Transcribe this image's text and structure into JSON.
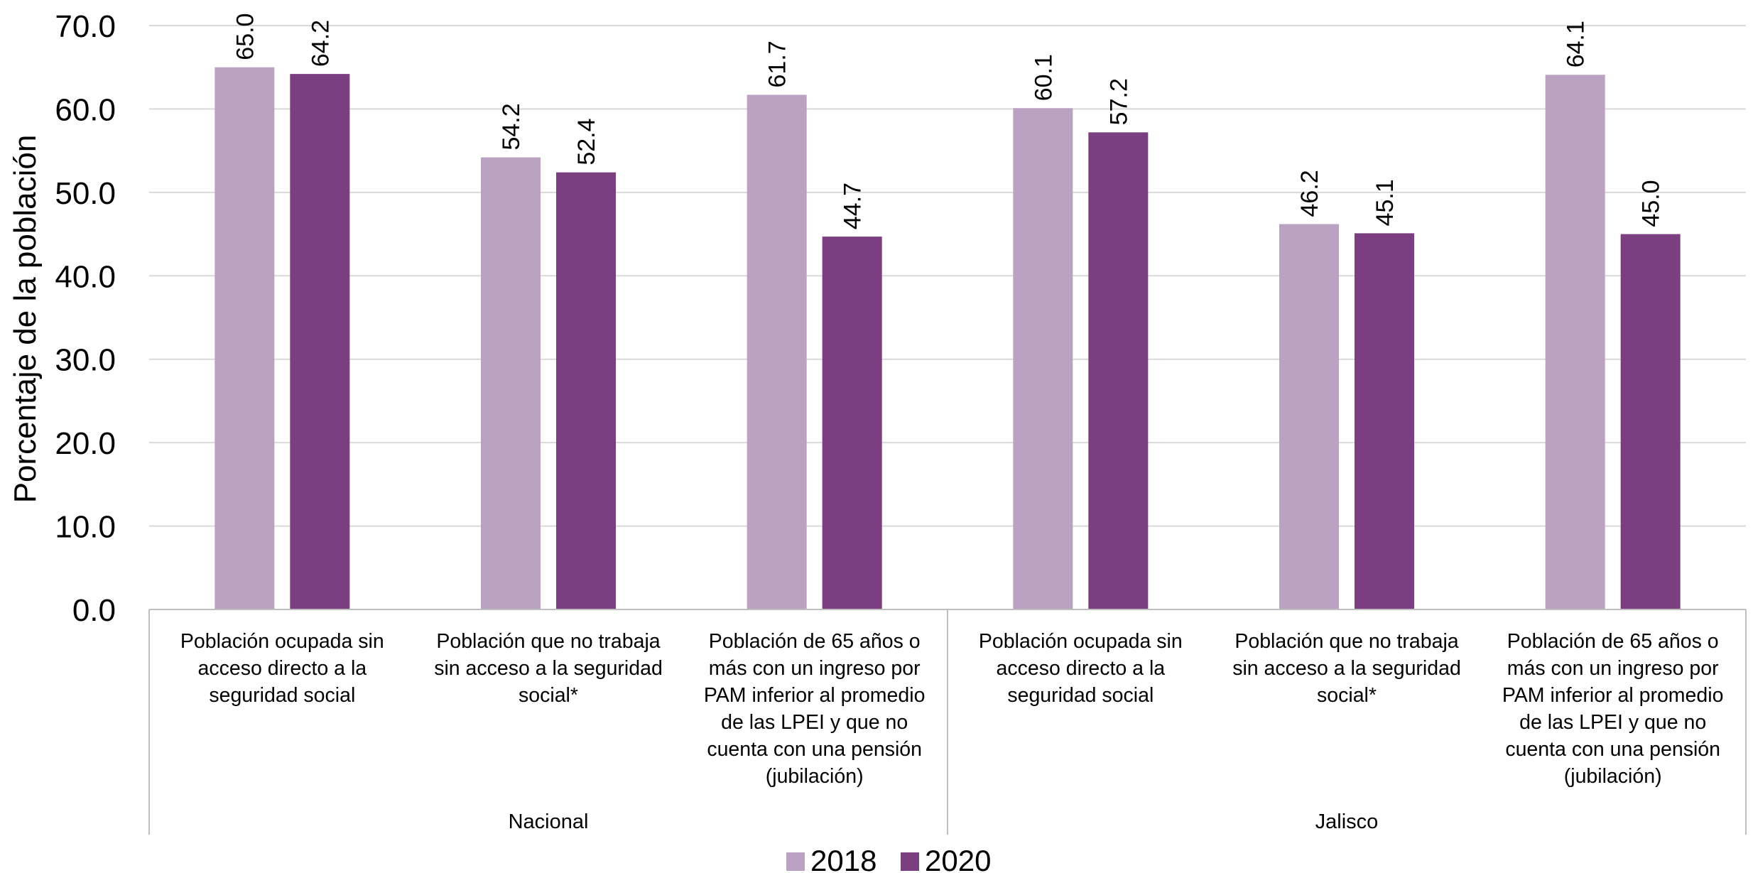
{
  "chart_data": {
    "type": "bar",
    "ylabel": "Porcentaje de la población",
    "ylim": [
      0,
      70
    ],
    "y_ticks": [
      "0.0",
      "10.0",
      "20.0",
      "30.0",
      "40.0",
      "50.0",
      "60.0",
      "70.0"
    ],
    "grid": true,
    "legend_position": "bottom",
    "groups": [
      {
        "name": "Nacional",
        "categories": [
          [
            "Población ocupada sin",
            "acceso directo a la",
            "seguridad social"
          ],
          [
            "Población que no trabaja",
            "sin acceso a la seguridad",
            "social*"
          ],
          [
            "Población de 65 años o",
            "más con un ingreso por",
            "PAM inferior al promedio",
            "de las LPEI y que no",
            "cuenta con una pensión",
            "(jubilación)"
          ]
        ]
      },
      {
        "name": "Jalisco",
        "categories": [
          [
            "Población ocupada sin",
            "acceso directo a la",
            "seguridad social"
          ],
          [
            "Población que no trabaja",
            "sin acceso a la seguridad",
            "social*"
          ],
          [
            "Población de 65 años o",
            "más con un ingreso por",
            "PAM inferior al promedio",
            "de las LPEI y que no",
            "cuenta con una pensión",
            "(jubilación)"
          ]
        ]
      }
    ],
    "series": [
      {
        "name": "2018",
        "color": "#bca2c2",
        "values": [
          65.0,
          54.2,
          61.7,
          60.1,
          46.2,
          64.1
        ]
      },
      {
        "name": "2020",
        "color": "#7b3f81",
        "values": [
          64.2,
          52.4,
          44.7,
          57.2,
          45.1,
          45.0
        ]
      }
    ],
    "colors": {
      "grid": "#d9d9d9",
      "axis": "#bfbfbf"
    }
  }
}
